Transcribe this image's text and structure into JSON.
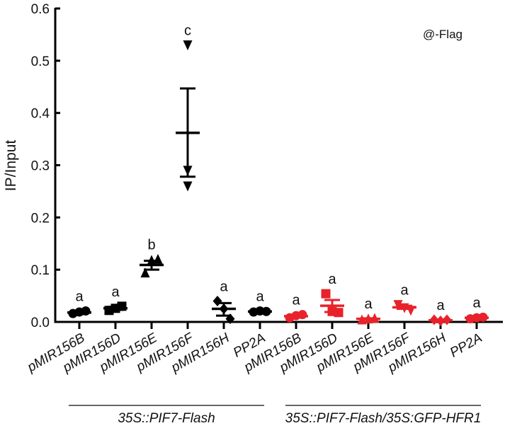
{
  "chart_data": {
    "type": "scatter",
    "title": "",
    "annotation": "@-Flag",
    "xlabel": "",
    "ylabel": "IP/Input",
    "ylim": [
      0,
      0.6
    ],
    "yticks": [
      "0.0",
      "0.1",
      "0.2",
      "0.3",
      "0.4",
      "0.5",
      "0.6"
    ],
    "grid": false,
    "legend": "none",
    "categories": [
      "pMIR156B",
      "pMIR156D",
      "pMIR156E",
      "pMIR156F",
      "pMIR156H",
      "PP2A",
      "pMIR156B",
      "pMIR156D",
      "pMIR156E",
      "pMIR156F",
      "pMIR156H",
      "PP2A"
    ],
    "groups": [
      {
        "name": "35S::PIF7-Flash",
        "color": "#000000",
        "category_indices": [
          0,
          1,
          2,
          3,
          4,
          5
        ]
      },
      {
        "name": "35S::PIF7-Flash/35S:GFP-HFR1",
        "color": "#e8222a",
        "category_indices": [
          6,
          7,
          8,
          9,
          10,
          11
        ]
      }
    ],
    "series": [
      {
        "category": "pMIR156B",
        "group": "35S::PIF7-Flash",
        "marker": "circle",
        "points": [
          0.016,
          0.019,
          0.021
        ],
        "mean": 0.018,
        "err_low": 0.015,
        "err_high": 0.021,
        "significance": "a"
      },
      {
        "category": "pMIR156D",
        "group": "35S::PIF7-Flash",
        "marker": "square",
        "points": [
          0.022,
          0.026,
          0.03
        ],
        "mean": 0.026,
        "err_low": 0.023,
        "err_high": 0.029,
        "significance": "a"
      },
      {
        "category": "pMIR156E",
        "group": "35S::PIF7-Flash",
        "marker": "triangle-up",
        "points": [
          0.094,
          0.118,
          0.12
        ],
        "mean": 0.109,
        "err_low": 0.1,
        "err_high": 0.117,
        "significance": "b"
      },
      {
        "category": "pMIR156F",
        "group": "35S::PIF7-Flash",
        "marker": "triangle-down",
        "points": [
          0.53,
          0.29,
          0.26
        ],
        "mean": 0.362,
        "err_low": 0.278,
        "err_high": 0.447,
        "significance": "c"
      },
      {
        "category": "pMIR156H",
        "group": "35S::PIF7-Flash",
        "marker": "diamond",
        "points": [
          0.04,
          0.025,
          0.006
        ],
        "mean": 0.025,
        "err_low": 0.012,
        "err_high": 0.036,
        "significance": "a"
      },
      {
        "category": "PP2A",
        "group": "35S::PIF7-Flash",
        "marker": "circle",
        "points": [
          0.019,
          0.021,
          0.02
        ],
        "mean": 0.02,
        "err_low": 0.019,
        "err_high": 0.021,
        "significance": "a"
      },
      {
        "category": "pMIR156B",
        "group": "35S::PIF7-Flash/35S:GFP-HFR1",
        "marker": "circle",
        "points": [
          0.008,
          0.012,
          0.014
        ],
        "mean": 0.011,
        "err_low": 0.009,
        "err_high": 0.013,
        "significance": "a"
      },
      {
        "category": "pMIR156D",
        "group": "35S::PIF7-Flash/35S:GFP-HFR1",
        "marker": "square",
        "points": [
          0.054,
          0.02,
          0.018
        ],
        "mean": 0.031,
        "err_low": 0.019,
        "err_high": 0.042,
        "significance": "a"
      },
      {
        "category": "pMIR156E",
        "group": "35S::PIF7-Flash/35S:GFP-HFR1",
        "marker": "triangle-up",
        "points": [
          0.004,
          0.006,
          0.007
        ],
        "mean": 0.006,
        "err_low": 0.005,
        "err_high": 0.007,
        "significance": "a"
      },
      {
        "category": "pMIR156F",
        "group": "35S::PIF7-Flash/35S:GFP-HFR1",
        "marker": "triangle-down",
        "points": [
          0.033,
          0.027,
          0.022
        ],
        "mean": 0.028,
        "err_low": 0.025,
        "err_high": 0.031,
        "significance": "a"
      },
      {
        "category": "pMIR156H",
        "group": "35S::PIF7-Flash/35S:GFP-HFR1",
        "marker": "diamond",
        "points": [
          0.004,
          0.002,
          0.004
        ],
        "mean": 0.003,
        "err_low": 0.002,
        "err_high": 0.004,
        "significance": "a"
      },
      {
        "category": "PP2A",
        "group": "35S::PIF7-Flash/35S:GFP-HFR1",
        "marker": "circle",
        "points": [
          0.006,
          0.008,
          0.009
        ],
        "mean": 0.008,
        "err_low": 0.007,
        "err_high": 0.009,
        "significance": "a"
      }
    ]
  }
}
